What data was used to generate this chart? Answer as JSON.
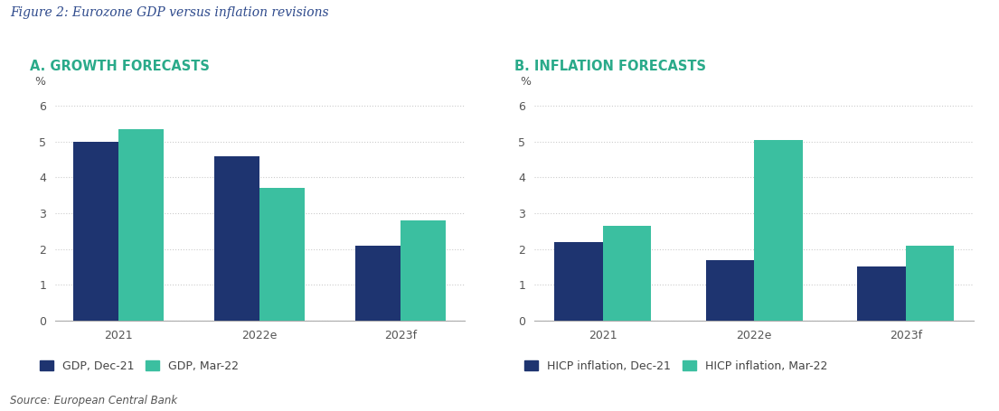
{
  "figure_title": "Figure 2: Eurozone GDP versus inflation revisions",
  "figure_title_color": "#2e4a8c",
  "figure_title_style": "italic",
  "figure_title_fontsize": 10,
  "panel_a_title": "A. GROWTH FORECASTS",
  "panel_b_title": "B. INFLATION FORECASTS",
  "panel_title_color": "#2aaa8a",
  "panel_title_fontsize": 10.5,
  "panel_title_fontweight": "bold",
  "categories": [
    "2021",
    "2022e",
    "2023f"
  ],
  "gdp_dec21": [
    5.0,
    4.6,
    2.1
  ],
  "gdp_mar22": [
    5.35,
    3.7,
    2.8
  ],
  "hicp_dec21": [
    2.2,
    1.7,
    1.5
  ],
  "hicp_mar22": [
    2.65,
    5.05,
    2.1
  ],
  "color_dark_blue": "#1e3470",
  "color_teal": "#3bbfa0",
  "ylim": [
    0,
    6.6
  ],
  "yticks": [
    0,
    1,
    2,
    3,
    4,
    5,
    6
  ],
  "ylabel": "%",
  "legend_a_labels": [
    "GDP, Dec-21",
    "GDP, Mar-22"
  ],
  "legend_b_labels": [
    "HICP inflation, Dec-21",
    "HICP inflation, Mar-22"
  ],
  "source_text": "Source: European Central Bank",
  "source_fontsize": 8.5,
  "bar_width": 0.32,
  "background_color": "#ffffff",
  "grid_color": "#cccccc",
  "axis_color": "#aaaaaa",
  "tick_label_fontsize": 9,
  "cat_label_fontsize": 9,
  "ylabel_fontsize": 9,
  "legend_fontsize": 9
}
